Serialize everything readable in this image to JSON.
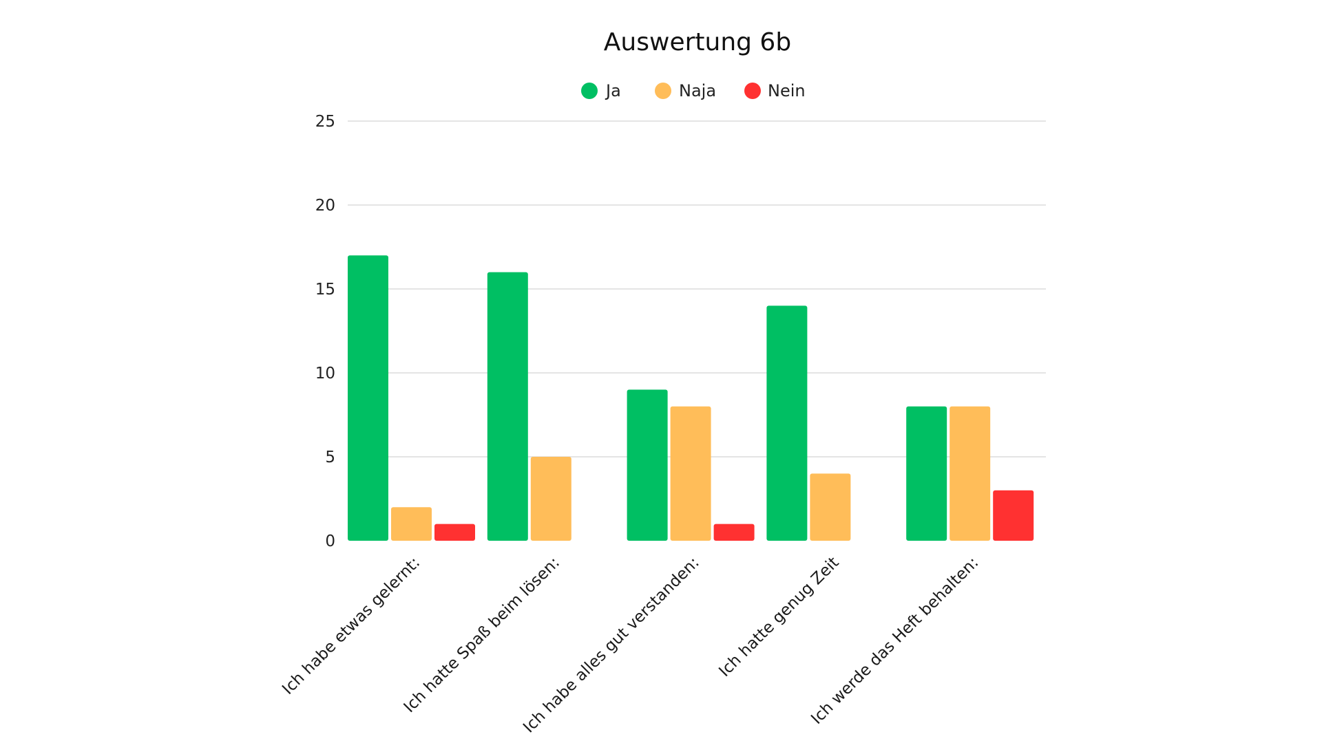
{
  "chart_data": {
    "type": "bar",
    "title": "Auswertung 6b",
    "xlabel": "",
    "ylabel": "",
    "categories": [
      "Ich habe etwas gelernt:",
      "Ich hatte Spaß beim lösen:",
      "Ich habe alles gut verstanden:",
      "Ich hatte genug Zeit",
      "Ich werde das Heft behalten:"
    ],
    "series": [
      {
        "name": "Ja",
        "color": "#00bf63",
        "values": [
          17,
          16,
          9,
          14,
          8
        ]
      },
      {
        "name": "Naja",
        "color": "#ffbd59",
        "values": [
          2,
          5,
          8,
          4,
          8
        ]
      },
      {
        "name": "Nein",
        "color": "#ff3131",
        "values": [
          1,
          0,
          1,
          0,
          3
        ]
      }
    ],
    "ylim": [
      0,
      25
    ],
    "yticks": [
      0,
      5,
      10,
      15,
      20,
      25
    ],
    "grid": true,
    "legend_position": "top-center"
  }
}
